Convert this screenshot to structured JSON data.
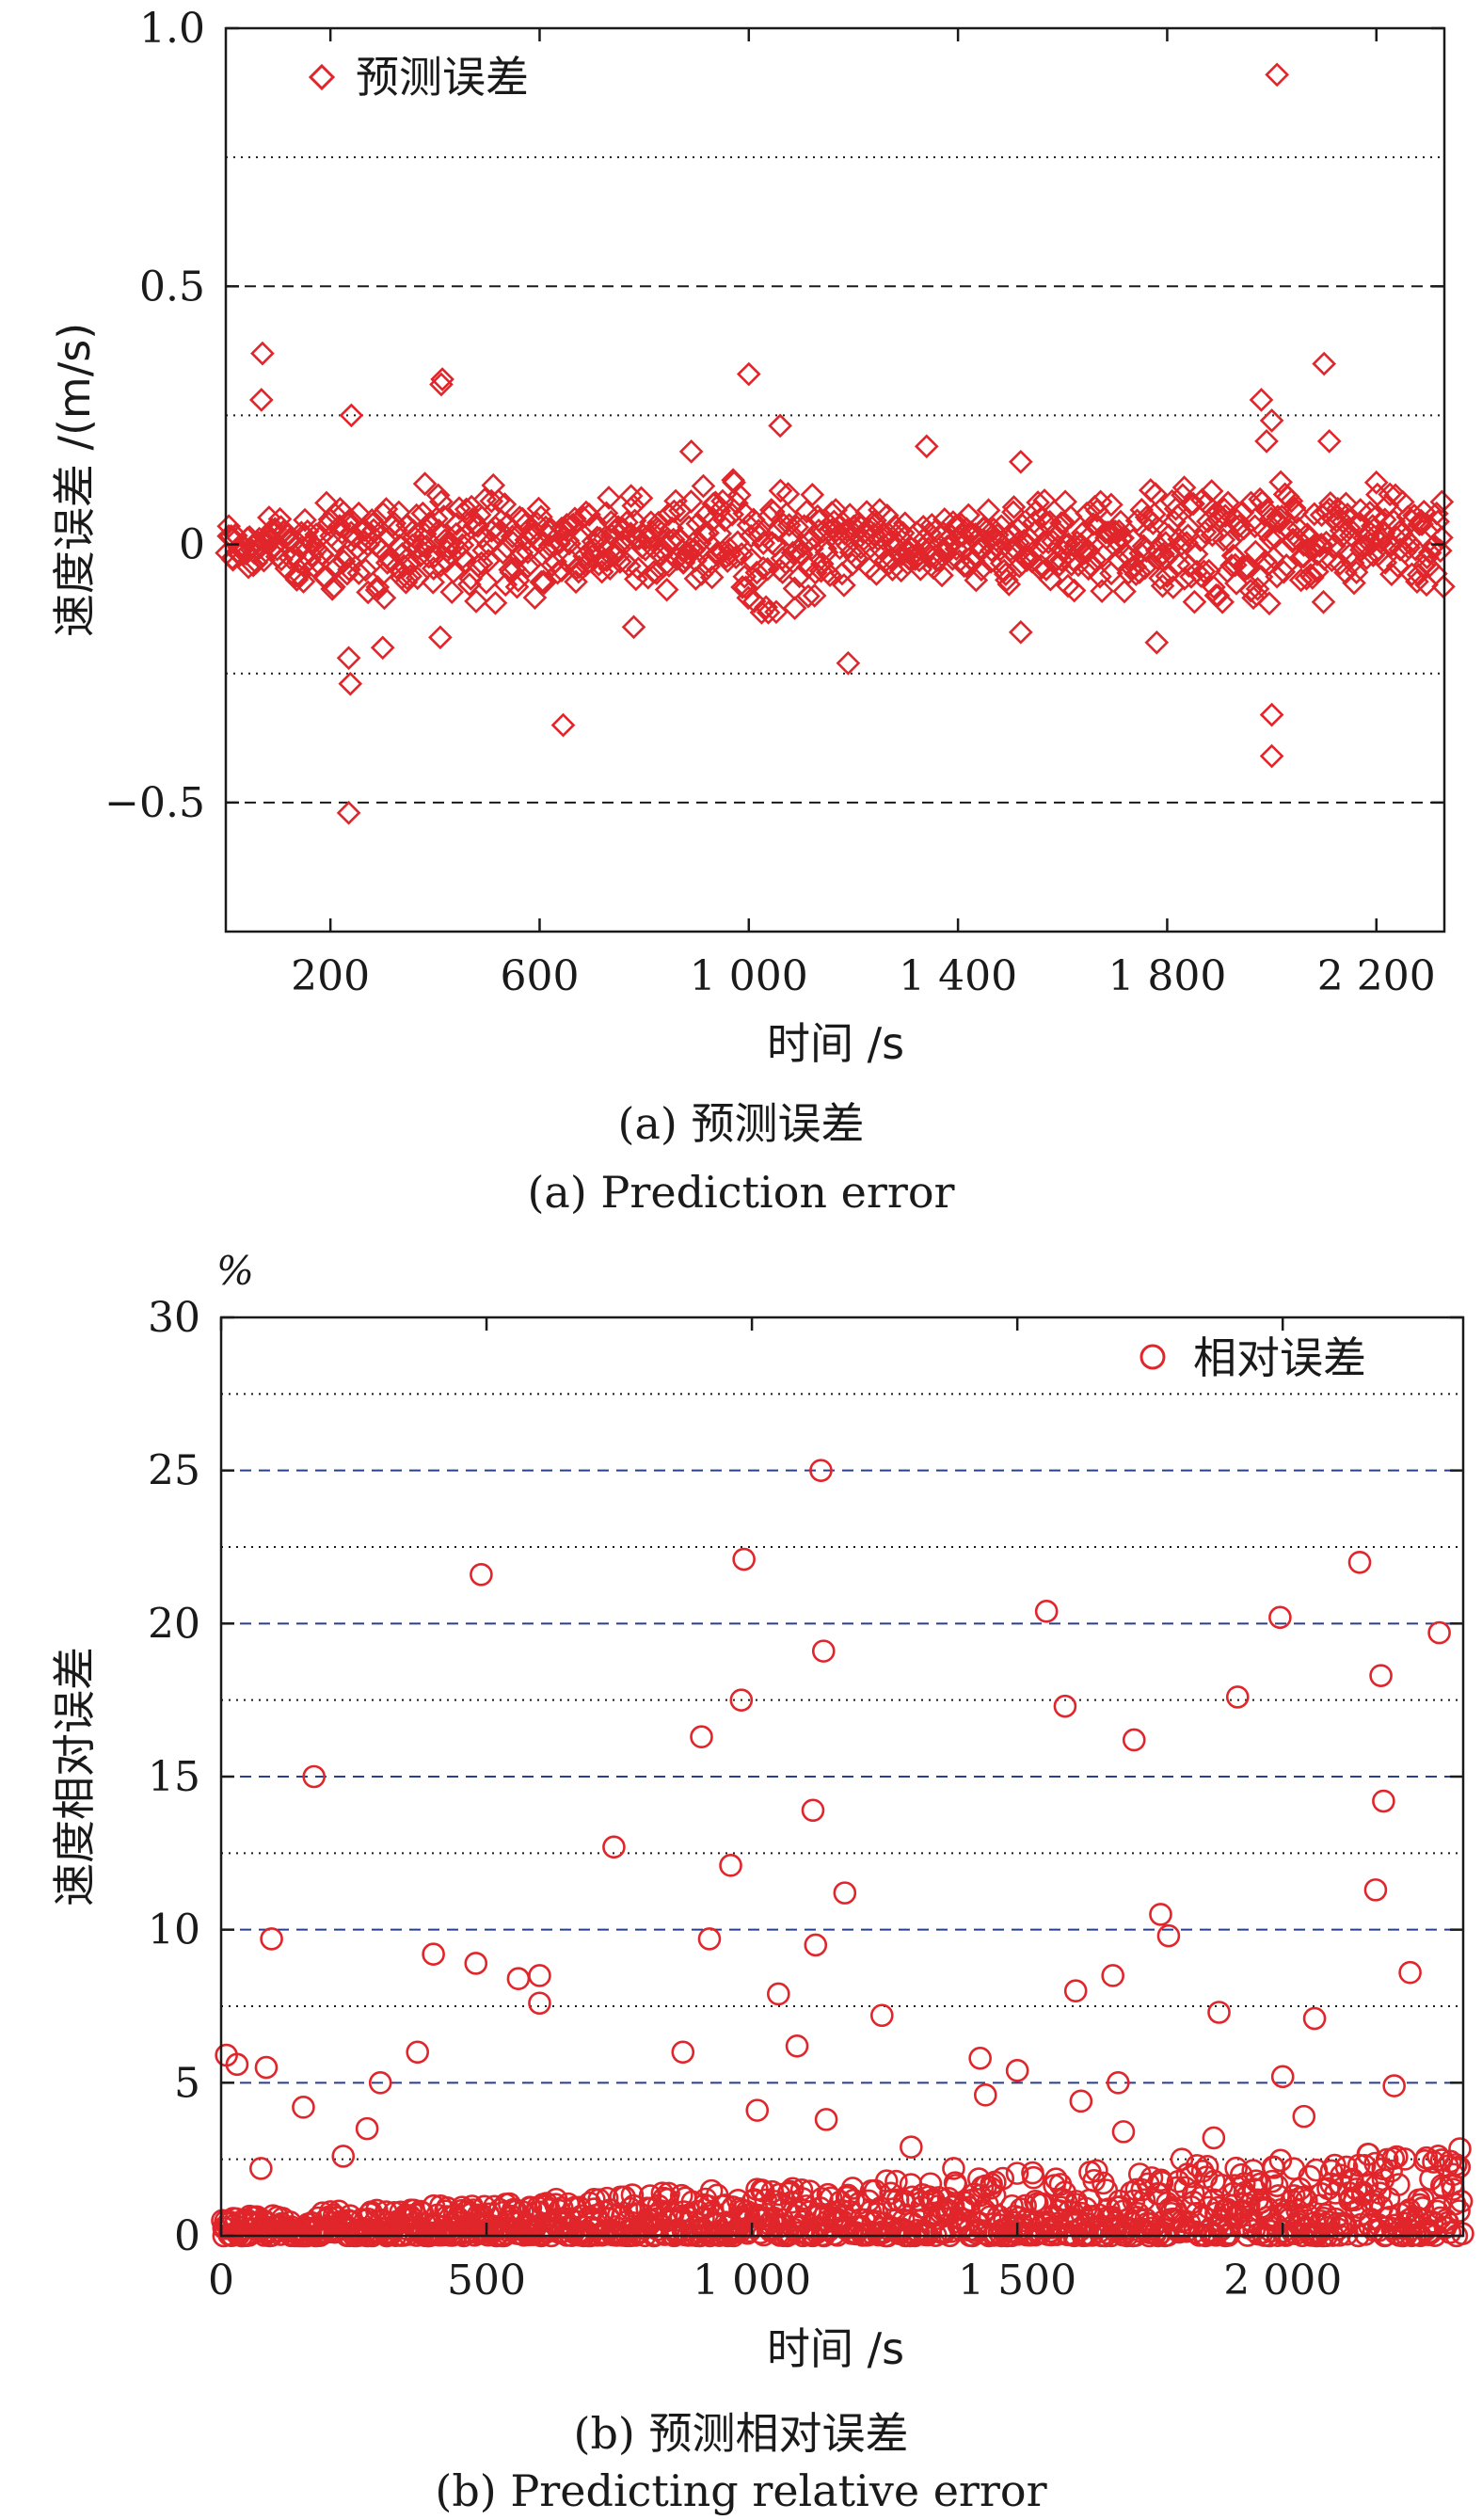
{
  "chart_data": [
    {
      "type": "scatter",
      "panel": "a",
      "ylabel": "速度误差 /(m/s)",
      "xlabel": "时间 /s",
      "xlim": [
        0,
        2330
      ],
      "ylim": [
        -0.75,
        1.0
      ],
      "xticks": [
        200,
        600,
        1000,
        1400,
        1800,
        2200
      ],
      "xtick_labels": [
        "200",
        "600",
        "1 000",
        "1 400",
        "1 800",
        "2 200"
      ],
      "yticks": [
        -0.5,
        0,
        0.5,
        1.0
      ],
      "ytick_labels": [
        "−0.5",
        "0",
        "0.5",
        "1.0"
      ],
      "hlines_dashed": [
        -0.5,
        0.5
      ],
      "hlines_dotted": [
        -0.25,
        0.25,
        0.75
      ],
      "legend": {
        "label": "预测误差",
        "marker": "diamond",
        "position": "top-left"
      },
      "marker_color": "#e0252b",
      "marker": "diamond",
      "series": [
        {
          "x": [
            70,
            68,
            240,
            238,
            412,
            414,
            1000,
            1060,
            2100,
            1980,
            2110,
            2010,
            2000,
            2000,
            645,
            235,
            235,
            410,
            300,
            1340,
            1520,
            1990,
            1780,
            2200,
            1190,
            1520,
            2000,
            780,
            890
          ],
          "y": [
            0.37,
            0.28,
            0.25,
            -0.27,
            0.31,
            0.32,
            0.33,
            0.23,
            0.35,
            0.28,
            0.2,
            0.91,
            -0.33,
            -0.41,
            -0.35,
            -0.52,
            -0.22,
            -0.18,
            -0.2,
            0.19,
            -0.17,
            0.2,
            -0.19,
            0.12,
            -0.23,
            0.16,
            0.24,
            -0.16,
            0.18
          ]
        }
      ],
      "dense_band": {
        "x_range": [
          0,
          2330
        ],
        "y_envelope": [
          [
            0,
            0.05
          ],
          [
            200,
            0.1
          ],
          [
            400,
            0.12
          ],
          [
            600,
            0.1
          ],
          [
            800,
            0.1
          ],
          [
            1000,
            0.16
          ],
          [
            1200,
            0.08
          ],
          [
            1400,
            0.06
          ],
          [
            1600,
            0.1
          ],
          [
            1800,
            0.12
          ],
          [
            2000,
            0.12
          ],
          [
            2200,
            0.1
          ],
          [
            2330,
            0.1
          ]
        ]
      }
    },
    {
      "type": "scatter",
      "panel": "b",
      "ylabel": "速度相对误差",
      "unit": "%",
      "xlabel": "时间 /s",
      "xlim": [
        0,
        2340
      ],
      "ylim": [
        0,
        30
      ],
      "xticks": [
        0,
        500,
        1000,
        1500,
        2000
      ],
      "xtick_labels": [
        "0",
        "500",
        "1 000",
        "1 500",
        "2 000"
      ],
      "yticks": [
        0,
        5,
        10,
        15,
        20,
        25,
        30
      ],
      "ytick_labels": [
        "0",
        "5",
        "10",
        "15",
        "20",
        "25",
        "30"
      ],
      "hlines_dashed": [
        5,
        10,
        15,
        20,
        25
      ],
      "hlines_dotted": [
        2.5,
        7.5,
        12.5,
        17.5,
        22.5,
        27.5
      ],
      "legend": {
        "label": "相对误差",
        "marker": "circle",
        "position": "top-right"
      },
      "marker_color": "#e0252b",
      "marker": "circle",
      "series": [
        {
          "x": [
            10,
            30,
            85,
            175,
            300,
            490,
            740,
            985,
            980,
            905,
            1130,
            1135,
            1115,
            1245,
            1555,
            1590,
            1720,
            1770,
            1785,
            1880,
            1915,
            1995,
            2145,
            2175,
            2185,
            2190,
            2295,
            870,
            400,
            560,
            600,
            600,
            480,
            155,
            1010,
            1175,
            1085,
            1120,
            1430,
            1440,
            1500,
            1680,
            1690,
            1870,
            2060,
            2240,
            2210,
            960,
            920,
            1050,
            1140,
            1300,
            1380,
            1610,
            1620,
            1700,
            1810,
            2000,
            2040,
            370,
            275,
            230,
            95,
            75
          ],
          "y": [
            5.9,
            5.6,
            5.5,
            15.0,
            5.0,
            21.6,
            12.7,
            22.1,
            17.5,
            16.3,
            25.0,
            19.1,
            13.9,
            7.2,
            20.4,
            17.3,
            16.2,
            10.5,
            9.8,
            7.3,
            17.6,
            20.2,
            22.0,
            11.3,
            18.3,
            14.2,
            19.7,
            6.0,
            9.2,
            8.4,
            8.5,
            7.6,
            8.9,
            4.2,
            4.1,
            11.2,
            6.2,
            9.5,
            5.8,
            4.6,
            5.4,
            8.5,
            5.0,
            3.2,
            7.1,
            8.6,
            4.9,
            12.1,
            9.7,
            7.9,
            3.8,
            2.9,
            2.2,
            8.0,
            4.4,
            3.4,
            2.5,
            5.2,
            3.9,
            6.0,
            3.5,
            2.6,
            9.7,
            2.2
          ]
        }
      ],
      "dense_band": {
        "x_range": [
          0,
          2340
        ],
        "y_envelope": [
          [
            0,
            0
          ],
          [
            2340,
            2.5
          ]
        ]
      }
    }
  ],
  "captions": {
    "a_cn": "(a) 预测误差",
    "a_en": "(a) Prediction error",
    "b_cn": "(b) 预测相对误差",
    "b_en": "(b) Predicting relative error"
  }
}
